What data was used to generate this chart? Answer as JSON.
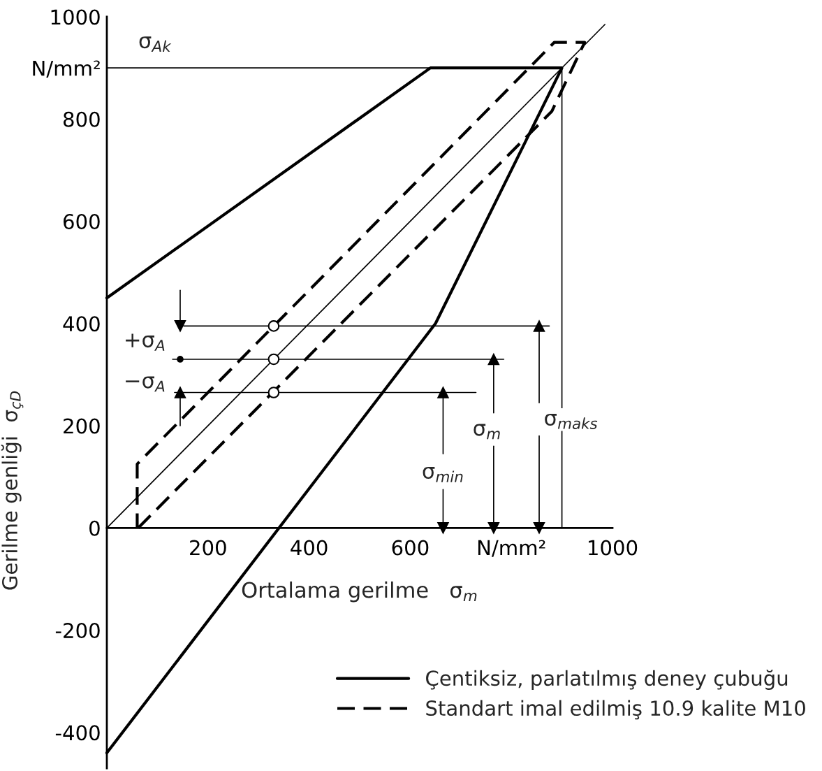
{
  "chart_data": {
    "type": "line",
    "xlabel": "Ortalama gerilme   σ$_{m}$",
    "ylabel": "Gerilme genliği  σ$_{çD}$",
    "xlim": [
      0,
      1000
    ],
    "ylim": [
      -470,
      1000
    ],
    "xticks": [
      200,
      400,
      600,
      {
        "value": 800,
        "label": "N/mm²"
      },
      1000
    ],
    "yticks": [
      -400,
      -200,
      0,
      200,
      400,
      600,
      800,
      {
        "value": 900,
        "label": "N/mm²"
      },
      1000
    ],
    "grid": false,
    "legend": "bottom right",
    "series": [
      {
        "name": "Çentiksiz, parlatılmış deney çubuğu",
        "color": "#000000",
        "line_style": "solid",
        "x": [
          0,
          640,
          900,
          650,
          0
        ],
        "values": [
          450,
          900,
          900,
          400,
          -440
        ]
      },
      {
        "name": "Standart imal edilmiş 10.9 kalite M10",
        "color": "#000000",
        "line_style": "dashed",
        "x": [
          62,
          880,
          945,
          885,
          60,
          60
        ],
        "values": [
          0,
          815,
          950,
          950,
          125,
          0
        ]
      },
      {
        "color": "#000000",
        "line_style": "solid",
        "x": [
          0,
          985
        ],
        "values": [
          0,
          985
        ]
      },
      {
        "color": "#000000",
        "line_style": "solid",
        "x": [
          0,
          900,
          900
        ],
        "values": [
          900,
          900,
          0
        ]
      },
      {
        "color": "#000000",
        "line_style": "solid",
        "x": [
          152,
          875
        ],
        "values": [
          395,
          395
        ]
      },
      {
        "color": "#000000",
        "line_style": "solid",
        "x": [
          130,
          785
        ],
        "values": [
          330,
          330
        ]
      },
      {
        "color": "#000000",
        "line_style": "solid",
        "x": [
          134,
          730
        ],
        "values": [
          265,
          265
        ]
      },
      {
        "color": "#000000",
        "line_style": "solid",
        "marker": "triangle",
        "x": [
          145,
          145
        ],
        "values": [
          465,
          395
        ]
      },
      {
        "color": "#000000",
        "line_style": "solid",
        "marker": "triangle",
        "x": [
          145,
          145
        ],
        "values": [
          200,
          265
        ]
      },
      {
        "color": "#000000",
        "line_style": "solid",
        "marker": "triangle",
        "x": [
          665,
          665
        ],
        "values": [
          145,
          265
        ]
      },
      {
        "color": "#000000",
        "line_style": "solid",
        "marker": "triangle",
        "x": [
          665,
          665
        ],
        "values": [
          75,
          0
        ]
      },
      {
        "color": "#000000",
        "line_style": "solid",
        "marker": "triangle",
        "x": [
          765,
          765
        ],
        "values": [
          225,
          330
        ]
      },
      {
        "color": "#000000",
        "line_style": "solid",
        "marker": "triangle",
        "x": [
          765,
          765
        ],
        "values": [
          160,
          0
        ]
      },
      {
        "color": "#000000",
        "line_style": "solid",
        "marker": "triangle",
        "x": [
          855,
          855
        ],
        "values": [
          245,
          395
        ]
      },
      {
        "color": "#000000",
        "line_style": "solid",
        "marker": "triangle",
        "x": [
          855,
          855
        ],
        "values": [
          180,
          0
        ]
      },
      {
        "type": "scatter",
        "color": "#000000",
        "marker": "circle",
        "x": [
          330,
          330,
          330
        ],
        "values": [
          395,
          330,
          265
        ]
      },
      {
        "type": "scatter",
        "color": "#000000",
        "marker": "circle",
        "x": [
          145
        ],
        "values": [
          330
        ]
      }
    ],
    "annotations": [
      "σ$_{Ak}$",
      "+σ$_{A}$",
      "−σ$_{A}$",
      "σ$_{min}$",
      "σ$_{m}$",
      "σ$_{maks}$"
    ]
  }
}
